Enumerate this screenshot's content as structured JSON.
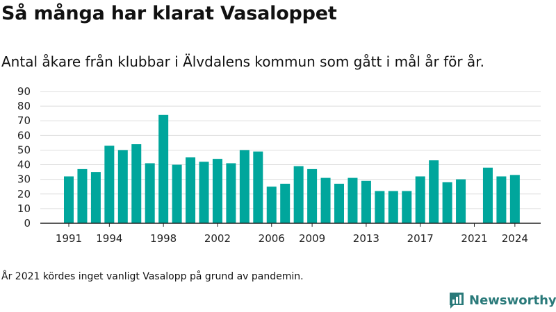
{
  "header": {
    "title": "Så många har klarat Vasaloppet",
    "subtitle": "Antal åkare från klubbar i Älvdalens kommun som gått i mål år för år."
  },
  "footer": {
    "note": "År 2021 kördes inget vanligt Vasalopp på grund av pandemin.",
    "brand": "Newsworthy",
    "brand_icon": "bar-chart-logo-icon"
  },
  "colors": {
    "bar": "#00a69c",
    "grid": "#dddddd",
    "axis": "#222222",
    "brand": "#2a7a7a"
  },
  "chart_data": {
    "type": "bar",
    "title": "Så många har klarat Vasaloppet",
    "subtitle": "Antal åkare från klubbar i Älvdalens kommun som gått i mål år för år.",
    "xlabel": "",
    "ylabel": "",
    "ylim": [
      0,
      90
    ],
    "yticks": [
      0,
      10,
      20,
      30,
      40,
      50,
      60,
      70,
      80,
      90
    ],
    "xticks": [
      1991,
      1994,
      1998,
      2002,
      2006,
      2009,
      2013,
      2017,
      2021,
      2024
    ],
    "grid": true,
    "categories": [
      1991,
      1992,
      1993,
      1994,
      1995,
      1996,
      1997,
      1998,
      1999,
      2000,
      2001,
      2002,
      2003,
      2004,
      2005,
      2006,
      2007,
      2008,
      2009,
      2010,
      2011,
      2012,
      2013,
      2014,
      2015,
      2016,
      2017,
      2018,
      2019,
      2020,
      2021,
      2022,
      2023,
      2024
    ],
    "values": [
      32,
      37,
      35,
      53,
      50,
      54,
      41,
      74,
      40,
      45,
      42,
      44,
      41,
      50,
      49,
      25,
      27,
      39,
      37,
      31,
      27,
      31,
      29,
      22,
      22,
      22,
      32,
      43,
      28,
      30,
      null,
      38,
      32,
      33
    ]
  }
}
